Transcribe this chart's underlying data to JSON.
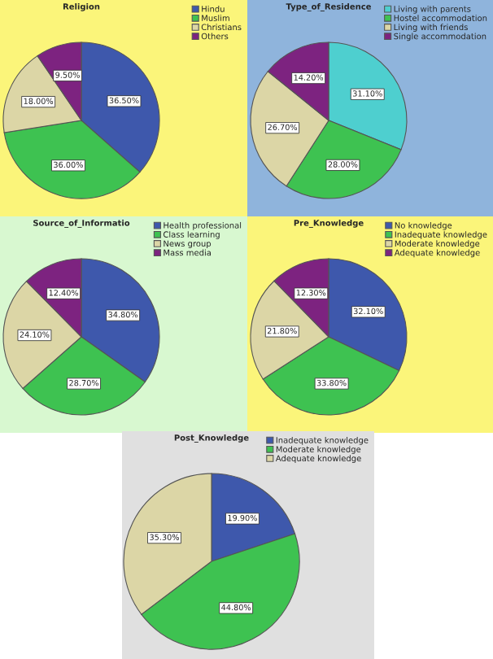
{
  "chart_data": [
    {
      "type": "pie",
      "title": "Religion",
      "categories": [
        "Hindu",
        "Muslim",
        "Christians",
        "Others"
      ],
      "values": [
        36.5,
        36.0,
        18.0,
        9.5
      ],
      "colors": [
        "#3e58ac",
        "#3ec251",
        "#dcd6a6",
        "#7d2380"
      ],
      "value_labels": [
        "36.50%",
        "36.00%",
        "18.00%",
        "9.50%"
      ],
      "legend": "top right"
    },
    {
      "type": "pie",
      "title": "Type_of_Residence",
      "categories": [
        "Living with parents",
        "Hostel accommodation",
        "Living with friends",
        "Single accommodation"
      ],
      "values": [
        31.1,
        28.0,
        26.7,
        14.2
      ],
      "colors": [
        "#4ecfcf",
        "#3ec251",
        "#dcd6a6",
        "#7d2380"
      ],
      "value_labels": [
        "31.10%",
        "28.00%",
        "26.70%",
        "14.20%"
      ],
      "legend": "top right"
    },
    {
      "type": "pie",
      "title": "Source_of_Informatio",
      "categories": [
        "Health professional",
        "Class learning",
        "News group",
        "Mass media"
      ],
      "values": [
        34.8,
        28.7,
        24.1,
        12.4
      ],
      "colors": [
        "#3e58ac",
        "#3ec251",
        "#dcd6a6",
        "#7d2380"
      ],
      "value_labels": [
        "34.80%",
        "28.70%",
        "24.10%",
        "12.40%"
      ],
      "legend": "top right"
    },
    {
      "type": "pie",
      "title": "Pre_Knowledge",
      "categories": [
        "No knowledge",
        "Inadequate knowledge",
        "Moderate knowledge",
        "Adequate knowledge"
      ],
      "values": [
        32.1,
        33.8,
        21.8,
        12.3
      ],
      "colors": [
        "#3e58ac",
        "#3ec251",
        "#dcd6a6",
        "#7d2380"
      ],
      "value_labels": [
        "32.10%",
        "33.80%",
        "21.80%",
        "12.30%"
      ],
      "legend": "top right"
    },
    {
      "type": "pie",
      "title": "Post_Knowledge",
      "categories": [
        "Inadequate knowledge",
        "Moderate knowledge",
        "Adequate knowledge"
      ],
      "values": [
        19.9,
        44.8,
        35.3
      ],
      "colors": [
        "#3e58ac",
        "#3ec251",
        "#dcd6a6"
      ],
      "value_labels": [
        "19.90%",
        "44.80%",
        "35.30%"
      ],
      "legend": "top right"
    }
  ]
}
